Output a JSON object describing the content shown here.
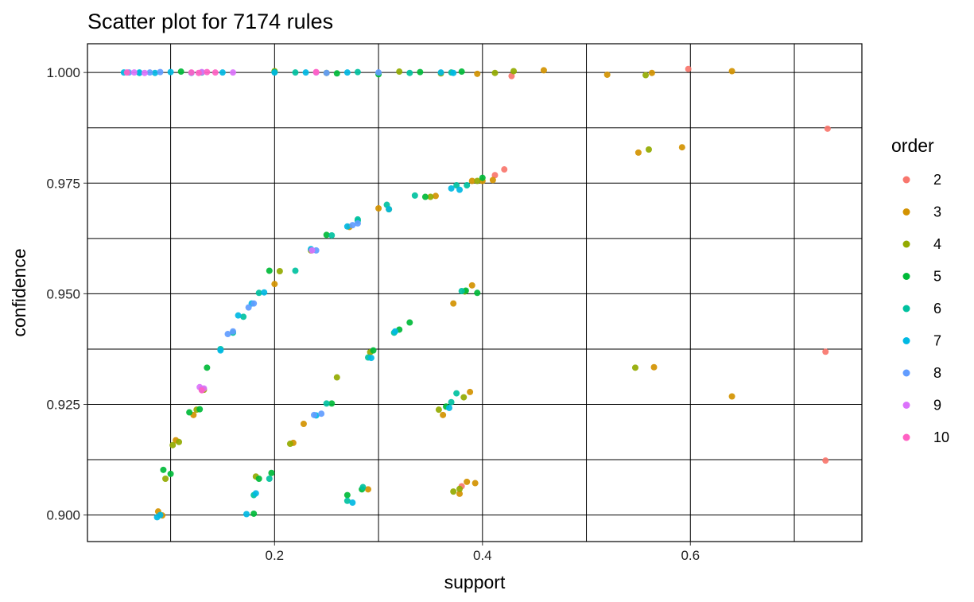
{
  "chart_data": {
    "type": "scatter",
    "title": "Scatter plot for 7174 rules",
    "xlabel": "support",
    "ylabel": "confidence",
    "xlim": [
      0.02,
      0.765
    ],
    "ylim": [
      0.894,
      1.0065
    ],
    "x_ticks": [
      0.2,
      0.4,
      0.6
    ],
    "x_tick_labels": [
      "0.2",
      "0.4",
      "0.6"
    ],
    "x_minor_grid": [
      0.1,
      0.3,
      0.5,
      0.7
    ],
    "y_ticks": [
      0.9,
      0.925,
      0.95,
      0.975,
      1.0
    ],
    "y_tick_labels": [
      "0.900",
      "0.925",
      "0.950",
      "0.975",
      "1.000"
    ],
    "y_minor_grid": [
      0.9125,
      0.9375,
      0.9625,
      0.9875
    ],
    "grid": true,
    "legend": {
      "title": "order",
      "position": "right",
      "entries": [
        {
          "label": "2",
          "color": "#F8766D"
        },
        {
          "label": "3",
          "color": "#D39200"
        },
        {
          "label": "4",
          "color": "#93AA00"
        },
        {
          "label": "5",
          "color": "#00BA38"
        },
        {
          "label": "6",
          "color": "#00C19F"
        },
        {
          "label": "7",
          "color": "#00B9E3"
        },
        {
          "label": "8",
          "color": "#619CFF"
        },
        {
          "label": "9",
          "color": "#DB72FB"
        },
        {
          "label": "10",
          "color": "#FF61C3"
        }
      ]
    },
    "series": [
      {
        "name": "2",
        "points": [
          [
            0.428,
            0.9992
          ],
          [
            0.598,
            1.0008
          ],
          [
            0.421,
            0.9781
          ],
          [
            0.412,
            0.9768
          ],
          [
            0.732,
            0.9873
          ],
          [
            0.73,
            0.9369
          ],
          [
            0.73,
            0.9123
          ],
          [
            0.38,
            0.9065
          ]
        ]
      },
      {
        "name": "3",
        "points": [
          [
            0.459,
            1.0005
          ],
          [
            0.52,
            0.9995
          ],
          [
            0.563,
            0.9999
          ],
          [
            0.64,
            1.0003
          ],
          [
            0.55,
            0.9819
          ],
          [
            0.592,
            0.9831
          ],
          [
            0.565,
            0.9334
          ],
          [
            0.64,
            0.9268
          ],
          [
            0.092,
            0.8999
          ],
          [
            0.088,
            0.9008
          ],
          [
            0.105,
            0.9169
          ],
          [
            0.122,
            0.9226
          ],
          [
            0.218,
            0.9163
          ],
          [
            0.228,
            0.9206
          ],
          [
            0.372,
            0.9478
          ],
          [
            0.39,
            0.9519
          ],
          [
            0.362,
            0.9226
          ],
          [
            0.388,
            0.9278
          ],
          [
            0.385,
            0.9075
          ],
          [
            0.393,
            0.9072
          ],
          [
            0.378,
            0.9048
          ],
          [
            0.41,
            0.9757
          ],
          [
            0.355,
            0.9721
          ],
          [
            0.2,
            0.9522
          ],
          [
            0.272,
            0.9651
          ],
          [
            0.3,
            0.9693
          ],
          [
            0.29,
            0.9058
          ],
          [
            0.395,
            0.9997
          ],
          [
            0.39,
            0.9755
          ],
          [
            0.4,
            0.9755
          ]
        ]
      },
      {
        "name": "4",
        "points": [
          [
            0.557,
            0.9994
          ],
          [
            0.56,
            0.9826
          ],
          [
            0.547,
            0.9333
          ],
          [
            0.095,
            0.9082
          ],
          [
            0.102,
            0.9158
          ],
          [
            0.108,
            0.9165
          ],
          [
            0.125,
            0.9238
          ],
          [
            0.215,
            0.9161
          ],
          [
            0.26,
            0.9311
          ],
          [
            0.205,
            0.9551
          ],
          [
            0.235,
            0.9598
          ],
          [
            0.358,
            0.9238
          ],
          [
            0.382,
            0.9266
          ],
          [
            0.372,
            0.9053
          ],
          [
            0.378,
            0.9059
          ],
          [
            0.292,
            0.9368
          ],
          [
            0.412,
            0.9999
          ],
          [
            0.43,
            1.0003
          ],
          [
            0.2,
            1.0003
          ],
          [
            0.25,
            0.9999
          ],
          [
            0.32,
            1.0002
          ],
          [
            0.36,
            0.9998
          ],
          [
            0.35,
            0.9719
          ],
          [
            0.31,
            0.9691
          ],
          [
            0.395,
            0.9755
          ],
          [
            0.383,
            0.9505
          ],
          [
            0.132,
            0.9283
          ],
          [
            0.182,
            0.9087
          ]
        ]
      },
      {
        "name": "5",
        "points": [
          [
            0.135,
            0.9333
          ],
          [
            0.093,
            0.9102
          ],
          [
            0.1,
            0.9093
          ],
          [
            0.118,
            0.9232
          ],
          [
            0.128,
            0.9239
          ],
          [
            0.197,
            0.9095
          ],
          [
            0.185,
            0.9082
          ],
          [
            0.18,
            0.9003
          ],
          [
            0.27,
            0.9045
          ],
          [
            0.284,
            0.9058
          ],
          [
            0.32,
            0.9419
          ],
          [
            0.33,
            0.9435
          ],
          [
            0.295,
            0.9372
          ],
          [
            0.255,
            0.9252
          ],
          [
            0.365,
            0.9245
          ],
          [
            0.384,
            0.9507
          ],
          [
            0.395,
            0.9502
          ],
          [
            0.4,
            0.9762
          ],
          [
            0.345,
            0.9719
          ],
          [
            0.25,
            0.9633
          ],
          [
            0.195,
            0.9552
          ],
          [
            0.2,
            1.0001
          ],
          [
            0.3,
            0.9996
          ],
          [
            0.38,
            1.0002
          ],
          [
            0.11,
            1.0002
          ],
          [
            0.26,
            0.9998
          ],
          [
            0.34,
            1.0001
          ]
        ]
      },
      {
        "name": "6",
        "points": [
          [
            0.148,
            0.9375
          ],
          [
            0.16,
            0.9412
          ],
          [
            0.17,
            0.9448
          ],
          [
            0.185,
            0.9502
          ],
          [
            0.22,
            0.9552
          ],
          [
            0.255,
            0.9632
          ],
          [
            0.28,
            0.9668
          ],
          [
            0.308,
            0.9701
          ],
          [
            0.335,
            0.9722
          ],
          [
            0.375,
            0.9745
          ],
          [
            0.385,
            0.9745
          ],
          [
            0.315,
            0.9412
          ],
          [
            0.29,
            0.9356
          ],
          [
            0.25,
            0.9252
          ],
          [
            0.37,
            0.9255
          ],
          [
            0.375,
            0.9275
          ],
          [
            0.195,
            0.9082
          ],
          [
            0.18,
            0.9045
          ],
          [
            0.27,
            0.9032
          ],
          [
            0.285,
            0.9063
          ],
          [
            0.13,
            0.9285
          ],
          [
            0.07,
            0.9999
          ],
          [
            0.13,
            1.0
          ],
          [
            0.22,
            1.0
          ],
          [
            0.28,
            1.0001
          ],
          [
            0.33,
            0.9999
          ],
          [
            0.37,
            1.0
          ],
          [
            0.28,
            0.9665
          ],
          [
            0.38,
            0.9506
          ]
        ]
      },
      {
        "name": "7",
        "points": [
          [
            0.055,
            1.0
          ],
          [
            0.07,
            1.0
          ],
          [
            0.085,
            0.9999
          ],
          [
            0.1,
            1.0001
          ],
          [
            0.15,
            1.0
          ],
          [
            0.2,
            1.0
          ],
          [
            0.23,
            1.0
          ],
          [
            0.27,
            1.0
          ],
          [
            0.36,
            1.0
          ],
          [
            0.372,
            0.9999
          ],
          [
            0.087,
            0.8995
          ],
          [
            0.09,
            0.9
          ],
          [
            0.148,
            0.9372
          ],
          [
            0.165,
            0.9451
          ],
          [
            0.178,
            0.9478
          ],
          [
            0.19,
            0.9503
          ],
          [
            0.235,
            0.9601
          ],
          [
            0.27,
            0.9652
          ],
          [
            0.31,
            0.9691
          ],
          [
            0.37,
            0.9738
          ],
          [
            0.378,
            0.9735
          ],
          [
            0.173,
            0.9002
          ],
          [
            0.182,
            0.9049
          ],
          [
            0.24,
            0.9225
          ],
          [
            0.316,
            0.9415
          ],
          [
            0.293,
            0.9355
          ],
          [
            0.368,
            0.9242
          ],
          [
            0.275,
            0.9028
          ]
        ]
      },
      {
        "name": "8",
        "points": [
          [
            0.06,
            1.0
          ],
          [
            0.08,
            1.0
          ],
          [
            0.09,
            1.0001
          ],
          [
            0.12,
            0.9999
          ],
          [
            0.13,
            0.9283
          ],
          [
            0.155,
            0.9409
          ],
          [
            0.175,
            0.9469
          ],
          [
            0.18,
            0.9478
          ],
          [
            0.24,
            0.9598
          ],
          [
            0.275,
            0.9655
          ],
          [
            0.28,
            0.9659
          ],
          [
            0.245,
            0.9229
          ],
          [
            0.238,
            0.9226
          ],
          [
            0.16,
            0.9415
          ],
          [
            0.25,
            0.9999
          ],
          [
            0.3,
            1.0
          ]
        ]
      },
      {
        "name": "9",
        "points": [
          [
            0.065,
            1.0
          ],
          [
            0.075,
            0.9999
          ],
          [
            0.13,
            1.0001
          ],
          [
            0.16,
            1.0
          ],
          [
            0.24,
            1.0
          ],
          [
            0.236,
            0.9598
          ],
          [
            0.132,
            0.9286
          ],
          [
            0.128,
            0.9289
          ]
        ]
      },
      {
        "name": "10",
        "points": [
          [
            0.058,
            1.0
          ],
          [
            0.12,
            1.0
          ],
          [
            0.127,
            0.9999
          ],
          [
            0.135,
            1.0001
          ],
          [
            0.143,
            1.0
          ],
          [
            0.24,
            1.0001
          ],
          [
            0.13,
            0.9282
          ]
        ]
      }
    ]
  }
}
